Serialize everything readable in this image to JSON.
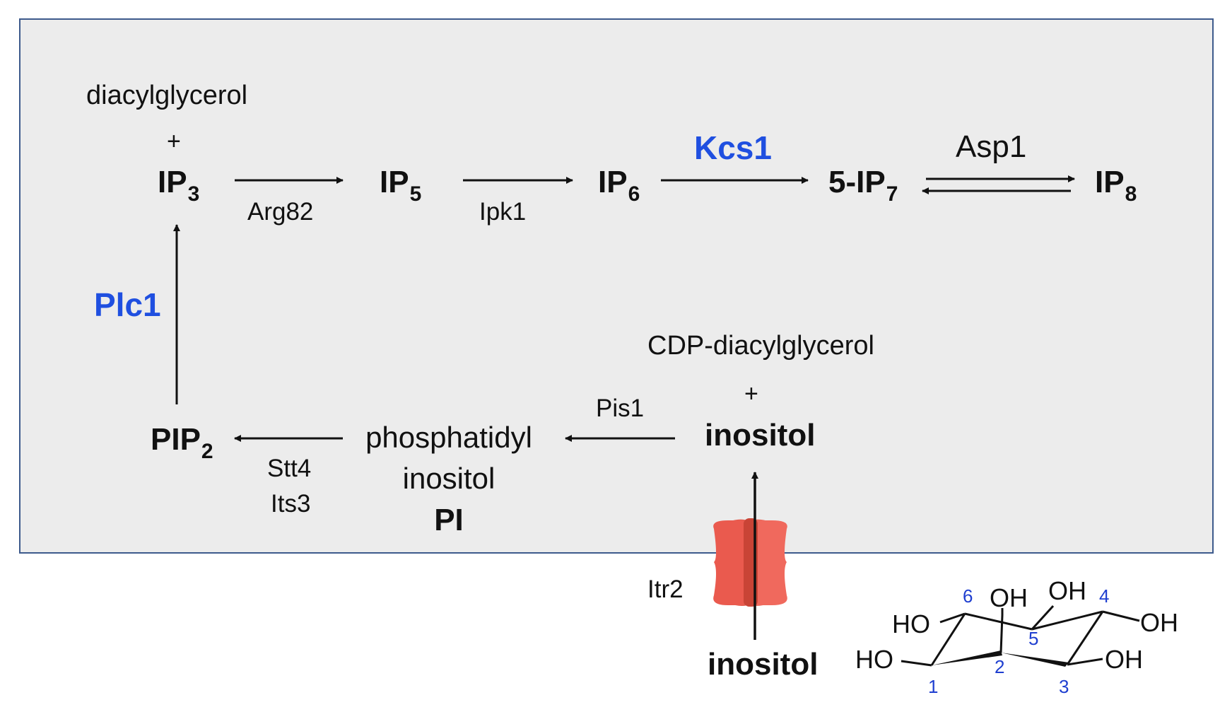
{
  "colors": {
    "enzyme_highlight": "#1f4fe0",
    "cell_fill": "#ececec",
    "cell_border": "#3d5a8c",
    "transporter": "#e8574a",
    "ring_numbers": "#1f3fd0"
  },
  "metabolites": {
    "diacylglycerol": "diacylglycerol",
    "plus_top": "+",
    "ip3": "IP",
    "ip3_sub": "3",
    "ip5": "IP",
    "ip5_sub": "5",
    "ip6": "IP",
    "ip6_sub": "6",
    "ip7": "5-IP",
    "ip7_sub": "7",
    "ip8": "IP",
    "ip8_sub": "8",
    "pip2": "PIP",
    "pip2_sub": "2",
    "pi_line1": "phosphatidyl",
    "pi_line2": "inositol",
    "pi_abbrev": "PI",
    "cdp_dag": "CDP-diacylglycerol",
    "plus_bottom": "+",
    "inositol_in": "inositol",
    "inositol_out": "inositol"
  },
  "enzymes": {
    "arg82": "Arg82",
    "ipk1": "Ipk1",
    "kcs1": "Kcs1",
    "asp1": "Asp1",
    "plc1": "Plc1",
    "pis1": "Pis1",
    "stt4": "Stt4",
    "its3": "Its3",
    "itr2": "Itr2"
  },
  "inositol_structure": {
    "groups": [
      "HO",
      "OH",
      "OH",
      "OH",
      "OH",
      "HO",
      "OH"
    ],
    "positions": [
      "1",
      "2",
      "3",
      "4",
      "5",
      "6"
    ]
  }
}
